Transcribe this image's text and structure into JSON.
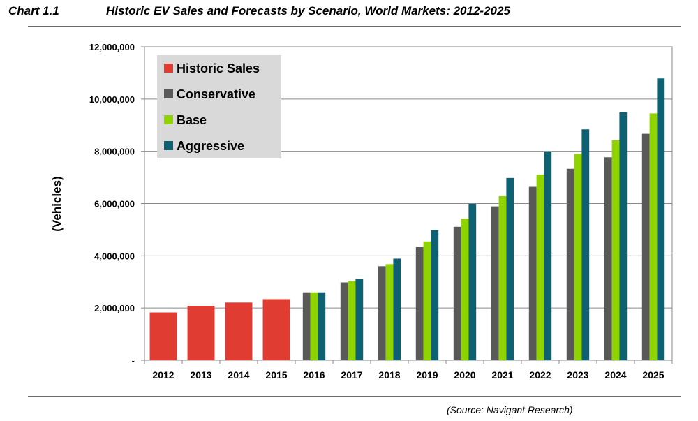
{
  "header": {
    "chart_number": "Chart 1.1",
    "title": "Historic EV Sales and Forecasts by Scenario, World Markets: 2012-2025"
  },
  "source": "(Source: Navigant Research)",
  "chart_data": {
    "type": "bar",
    "title": "Historic EV Sales and Forecasts by Scenario, World Markets: 2012-2025",
    "xlabel": "",
    "ylabel": "(Vehicles)",
    "ylim": [
      0,
      12000000
    ],
    "yticks": [
      0,
      2000000,
      4000000,
      6000000,
      8000000,
      10000000,
      12000000
    ],
    "ytick_labels": [
      "-",
      "2,000,000",
      "4,000,000",
      "6,000,000",
      "8,000,000",
      "10,000,000",
      "12,000,000"
    ],
    "grid": "horizontal",
    "legend_position": "top-left",
    "categories": [
      "2012",
      "2013",
      "2014",
      "2015",
      "2016",
      "2017",
      "2018",
      "2019",
      "2020",
      "2021",
      "2022",
      "2023",
      "2024",
      "2025"
    ],
    "series": [
      {
        "name": "Historic Sales",
        "color": "#e03c31",
        "values": [
          1830000,
          2080000,
          2210000,
          2340000,
          null,
          null,
          null,
          null,
          null,
          null,
          null,
          null,
          null,
          null
        ]
      },
      {
        "name": "Conservative",
        "color": "#595959",
        "values": [
          null,
          null,
          null,
          null,
          2600000,
          2980000,
          3600000,
          4330000,
          5110000,
          5890000,
          6640000,
          7330000,
          7770000,
          8670000
        ]
      },
      {
        "name": "Base",
        "color": "#8fd400",
        "values": [
          null,
          null,
          null,
          null,
          2600000,
          3030000,
          3680000,
          4550000,
          5420000,
          6280000,
          7110000,
          7900000,
          8420000,
          9450000
        ]
      },
      {
        "name": "Aggressive",
        "color": "#0e6172",
        "values": [
          null,
          null,
          null,
          null,
          2600000,
          3110000,
          3890000,
          4980000,
          5990000,
          6980000,
          7990000,
          8840000,
          9490000,
          10790000
        ]
      }
    ]
  }
}
